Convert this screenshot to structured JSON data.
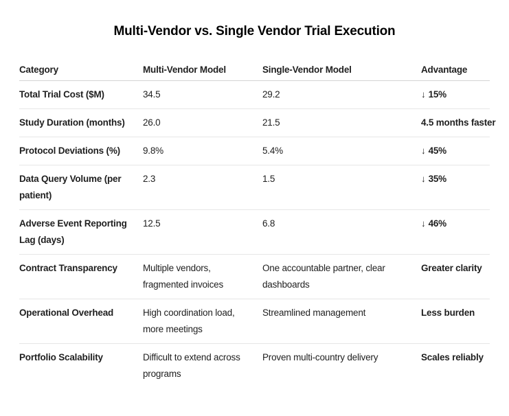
{
  "title": "Multi-Vendor vs. Single Vendor Trial Execution",
  "table": {
    "columns": [
      "Category",
      "Multi-Vendor Model",
      "Single-Vendor Model",
      "Advantage"
    ],
    "rows": [
      {
        "category": "Total Trial Cost ($M)",
        "multi_vendor": "34.5",
        "single_vendor": "29.2",
        "advantage": {
          "arrow": "↓",
          "text": "15%"
        }
      },
      {
        "category": "Study Duration (months)",
        "multi_vendor": "26.0",
        "single_vendor": "21.5",
        "advantage": {
          "arrow": "",
          "text": "4.5 months faster"
        }
      },
      {
        "category": "Protocol Deviations (%)",
        "multi_vendor": "9.8%",
        "single_vendor": "5.4%",
        "advantage": {
          "arrow": "↓",
          "text": "45%"
        }
      },
      {
        "category": "Data Query Volume (per patient)",
        "multi_vendor": "2.3",
        "single_vendor": "1.5",
        "advantage": {
          "arrow": "↓",
          "text": "35%"
        }
      },
      {
        "category": "Adverse Event Reporting Lag (days)",
        "multi_vendor": "12.5",
        "single_vendor": "6.8",
        "advantage": {
          "arrow": "↓",
          "text": "46%"
        }
      },
      {
        "category": "Contract Transparency",
        "multi_vendor": "Multiple vendors, fragmented invoices",
        "single_vendor": "One accountable partner, clear dashboards",
        "advantage": {
          "arrow": "",
          "text": "Greater clarity"
        }
      },
      {
        "category": "Operational Overhead",
        "multi_vendor": "High coordination load, more meetings",
        "single_vendor": "Streamlined management",
        "advantage": {
          "arrow": "",
          "text": "Less burden"
        }
      },
      {
        "category": "Portfolio Scalability",
        "multi_vendor": "Difficult to extend across programs",
        "single_vendor": "Proven multi-country delivery",
        "advantage": {
          "arrow": "",
          "text": "Scales reliably"
        }
      }
    ]
  },
  "colors": {
    "background": "#ffffff",
    "title_text": "#000000",
    "body_text": "#212121",
    "header_border": "#d4d4d4",
    "row_border": "#e6e6e6"
  }
}
